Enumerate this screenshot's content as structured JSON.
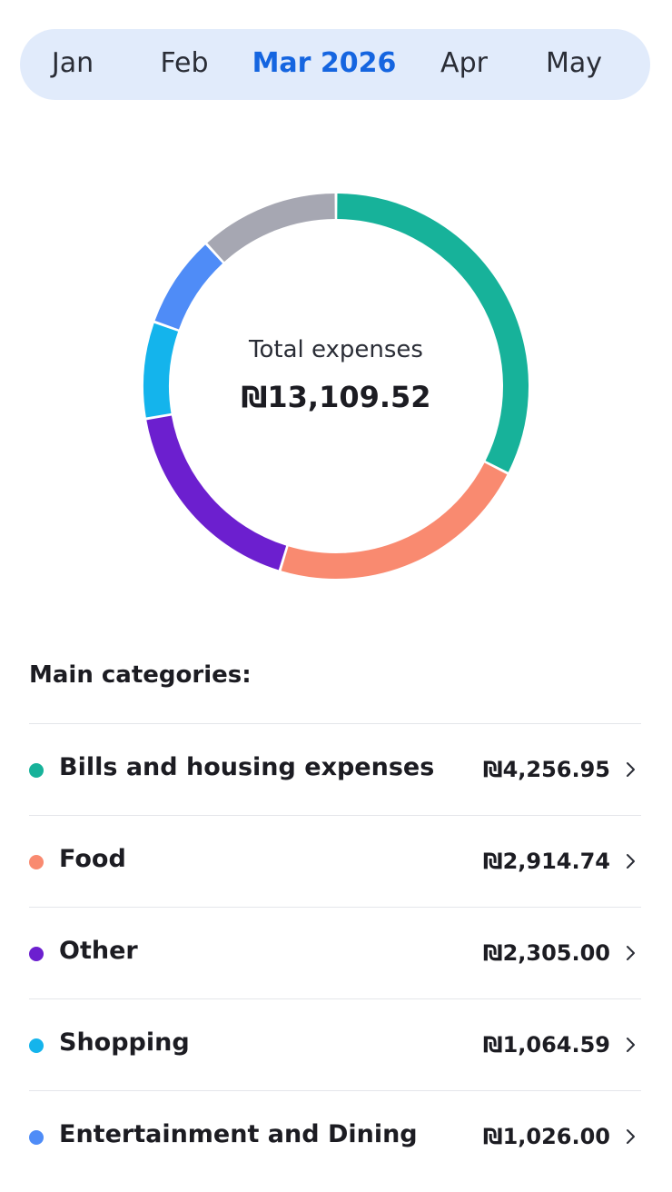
{
  "months": [
    {
      "label": "Jan",
      "selected": false
    },
    {
      "label": "Feb",
      "selected": false
    },
    {
      "label": "Mar 2026",
      "selected": true
    },
    {
      "label": "Apr",
      "selected": false
    },
    {
      "label": "May",
      "selected": false
    }
  ],
  "summary": {
    "total_label": "Total expenses",
    "total_value": "₪13,109.52"
  },
  "categories_title": "Main categories:",
  "categories": [
    {
      "name": "Bills and housing expenses",
      "amount": "₪4,256.95",
      "color": "#17b29a"
    },
    {
      "name": "Food",
      "amount": "₪2,914.74",
      "color": "#f98a70"
    },
    {
      "name": "Other",
      "amount": "₪2,305.00",
      "color": "#6c1fcf"
    },
    {
      "name": "Shopping",
      "amount": "₪1,064.59",
      "color": "#14b4ec"
    },
    {
      "name": "Entertainment and Dining",
      "amount": "₪1,026.00",
      "color": "#4f8cf7"
    }
  ],
  "chart_data": {
    "type": "pie",
    "segments": [
      {
        "label": "Bills and housing expenses",
        "value": 4256.95,
        "color": "#17b29a"
      },
      {
        "label": "Food",
        "value": 2914.74,
        "color": "#f98a70"
      },
      {
        "label": "Other",
        "value": 2305.0,
        "color": "#6c1fcf"
      },
      {
        "label": "Shopping",
        "value": 1064.59,
        "color": "#14b4ec"
      },
      {
        "label": "Entertainment and Dining",
        "value": 1026.0,
        "color": "#4f8cf7"
      },
      {
        "label": "",
        "value": 1542.24,
        "color": "#a6a7b2"
      }
    ]
  }
}
